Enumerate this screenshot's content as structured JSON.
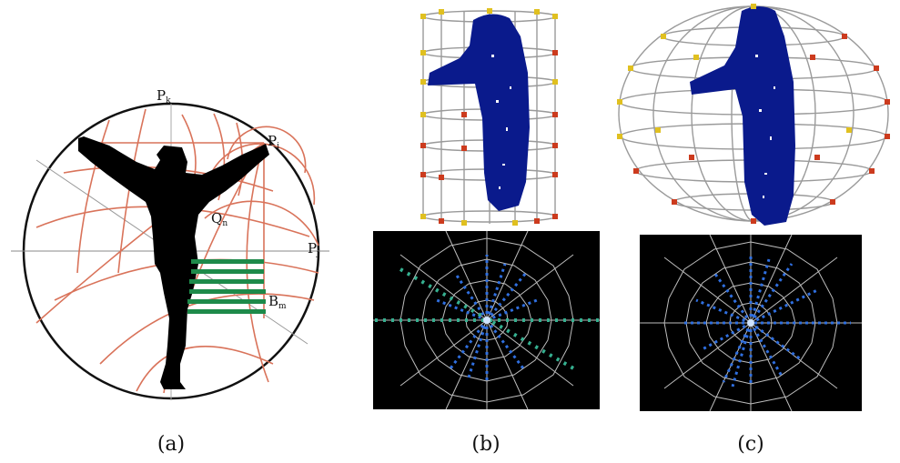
{
  "panels": [
    {
      "caption": "(a)",
      "labels": {
        "pk": "P",
        "pk_sub": "k",
        "pi": "P",
        "pi_sub": "i",
        "pj": "P",
        "pj_sub": "j",
        "qn": "Q",
        "qn_sub": "n",
        "bm": "B",
        "bm_sub": "m"
      }
    },
    {
      "caption": "(b)"
    },
    {
      "caption": "(c)"
    }
  ],
  "colors": {
    "arc": "#d9735a",
    "silhouette": "#000000",
    "stripes": "#1e8a4a",
    "body3d": "#0a1a8c",
    "wire": "#9a9a9a",
    "node_red": "#cc3b1e",
    "node_yellow": "#e0c020",
    "polar_bg": "#000000",
    "polar_grid": "#bdbdbd",
    "dot_blue": "#2f6fe0",
    "dot_green": "#35b090"
  }
}
